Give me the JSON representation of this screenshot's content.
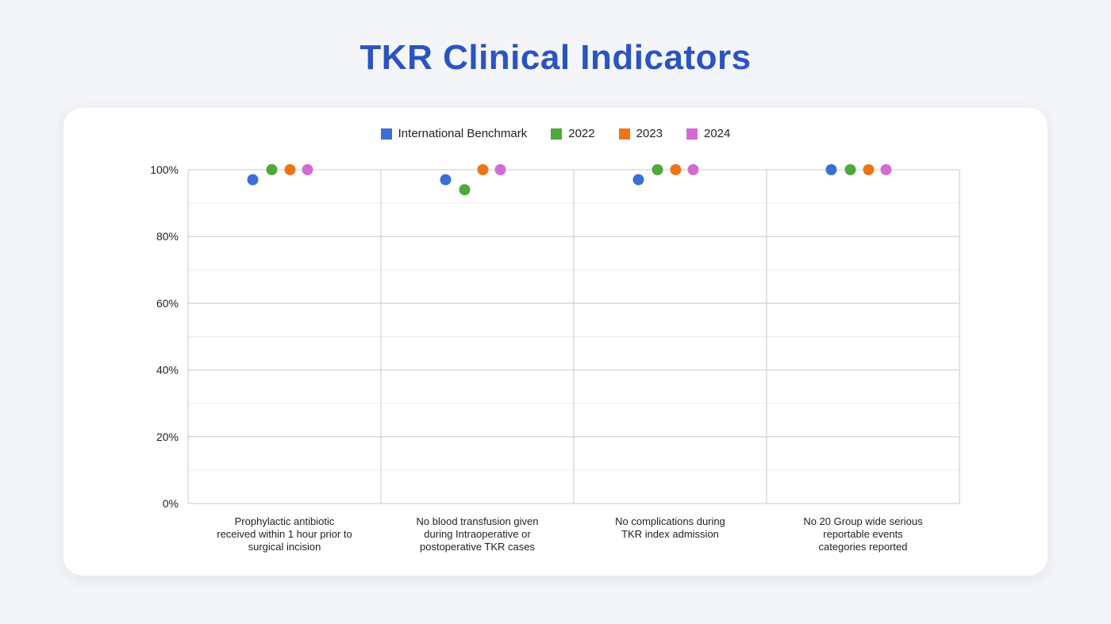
{
  "title": "TKR Clinical Indicators",
  "chart_data": {
    "type": "scatter",
    "title": "TKR Clinical Indicators",
    "categories": [
      [
        "Prophylactic antibiotic",
        "received within 1 hour prior to",
        "surgical incision"
      ],
      [
        "No blood transfusion given",
        "during Intraoperative or",
        "postoperative TKR cases"
      ],
      [
        "No complications during",
        "TKR index admission"
      ],
      [
        "No 20 Group wide serious",
        "reportable events",
        "categories reported"
      ]
    ],
    "series": [
      {
        "name": "International Benchmark",
        "color": "#3b6fd6",
        "values": [
          97,
          97,
          97,
          100
        ]
      },
      {
        "name": "2022",
        "color": "#4ea83a",
        "values": [
          100,
          94,
          100,
          100
        ]
      },
      {
        "name": "2023",
        "color": "#ef7417",
        "values": [
          100,
          100,
          100,
          100
        ]
      },
      {
        "name": "2024",
        "color": "#d26bd4",
        "values": [
          100,
          100,
          100,
          100
        ]
      }
    ],
    "ylim": [
      0,
      100
    ],
    "yticks": [
      0,
      20,
      40,
      60,
      80,
      100
    ],
    "ytick_labels": [
      "0%",
      "20%",
      "40%",
      "60%",
      "80%",
      "100%"
    ],
    "xlabel": "",
    "ylabel": "",
    "legend_position": "top-center",
    "grid": true
  }
}
